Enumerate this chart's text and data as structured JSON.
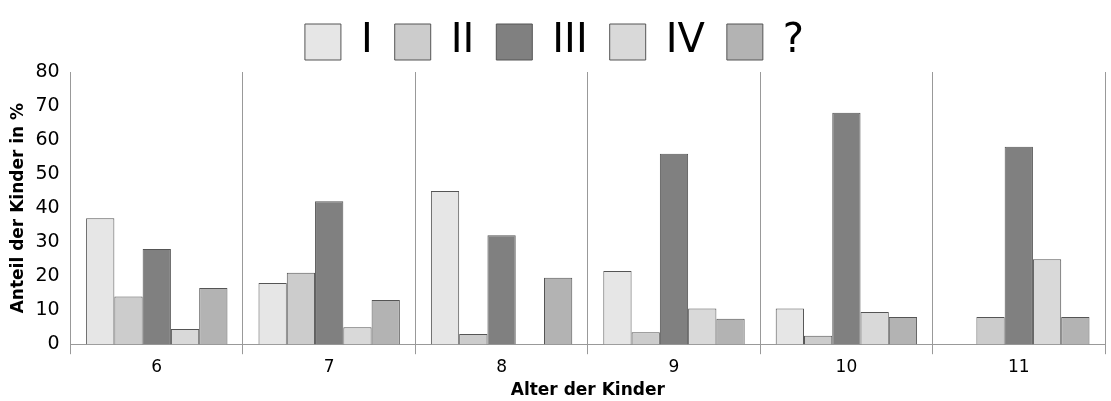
{
  "chart_data": {
    "type": "bar",
    "xlabel": "Alter der Kinder",
    "ylabel": "Anteil der Kinder in %",
    "categories": [
      "6",
      "7",
      "8",
      "9",
      "10",
      "11"
    ],
    "series": [
      {
        "name": "I",
        "color": "#e6e6e6",
        "values": [
          37,
          18,
          45,
          21.5,
          10.5,
          null
        ]
      },
      {
        "name": "II",
        "color": "#cccccc",
        "values": [
          14,
          21,
          3,
          3.5,
          2.5,
          8
        ]
      },
      {
        "name": "III",
        "color": "#808080",
        "values": [
          28,
          42,
          32,
          56,
          68,
          58
        ]
      },
      {
        "name": "IV",
        "color": "#d9d9d9",
        "values": [
          4.5,
          5,
          null,
          10.5,
          9.5,
          25
        ]
      },
      {
        "name": "?",
        "color": "#b3b3b3",
        "values": [
          16.5,
          13,
          19.5,
          7.5,
          8,
          8
        ]
      }
    ],
    "ylim": [
      0,
      80
    ],
    "yticks": [
      0,
      10,
      20,
      30,
      40,
      50,
      60,
      70,
      80
    ],
    "grid": "x",
    "legend": "top"
  }
}
